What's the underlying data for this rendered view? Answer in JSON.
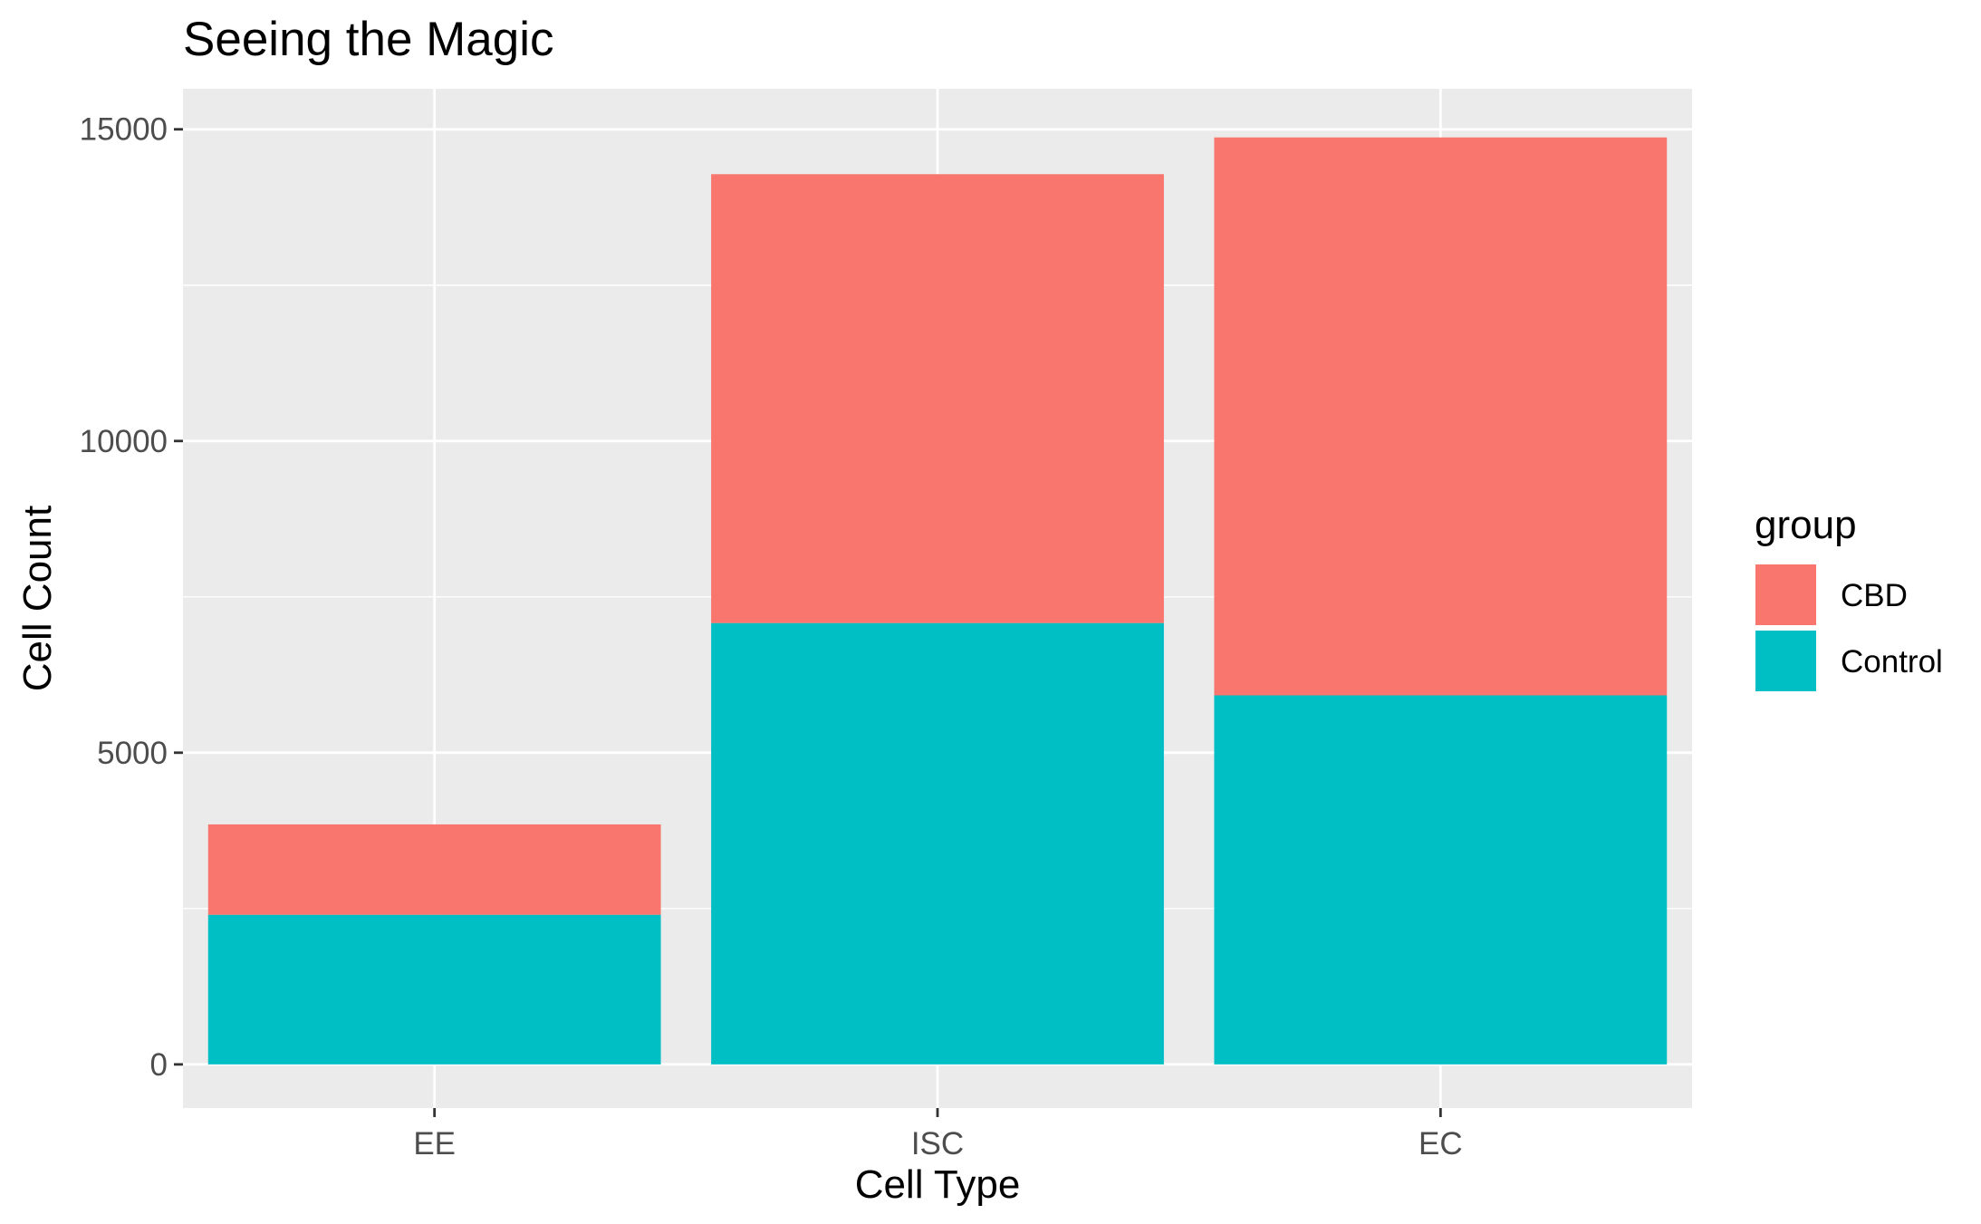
{
  "chart_data": {
    "type": "bar",
    "stacked": true,
    "title": "Seeing the Magic",
    "xlabel": "Cell Type",
    "ylabel": "Cell Count",
    "categories": [
      "EE",
      "ISC",
      "EC"
    ],
    "series": [
      {
        "name": "CBD",
        "values": [
          1450,
          7200,
          8950
        ],
        "color": "#F8766D"
      },
      {
        "name": "Control",
        "values": [
          2400,
          7080,
          5920
        ],
        "color": "#00BFC4"
      }
    ],
    "stack_order_bottom_to_top": [
      "Control",
      "CBD"
    ],
    "ylim": [
      -700,
      15650
    ],
    "yticks": [
      0,
      5000,
      10000,
      15000
    ],
    "ytick_labels": [
      "0",
      "5000",
      "10000",
      "15000"
    ],
    "grid": true,
    "panel_background": "#EBEBEB",
    "grid_color": "#FFFFFF",
    "legend": {
      "title": "group",
      "position": "right",
      "entries": [
        "CBD",
        "Control"
      ]
    }
  }
}
